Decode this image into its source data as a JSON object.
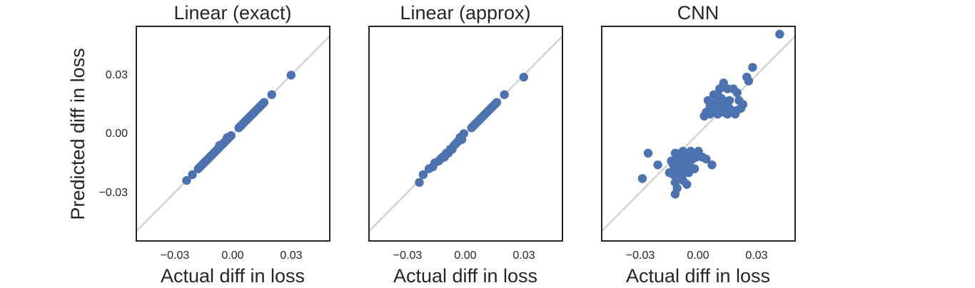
{
  "figure": {
    "ylabel": "Predicted diff in loss",
    "colors": {
      "points": "#4c72b0",
      "diagonal": "#d3d3d3",
      "frame": "#262626",
      "text": "#262626"
    }
  },
  "chart_data": [
    {
      "type": "scatter",
      "title": "Linear (exact)",
      "xlabel": "Actual diff in loss",
      "ylabel": "Predicted diff in loss",
      "xlim": [
        -0.05,
        0.05
      ],
      "ylim": [
        -0.055,
        0.055
      ],
      "xticks": [
        -0.03,
        0.0,
        0.03
      ],
      "xtick_labels": [
        "−0.03",
        "0.00",
        "0.03"
      ],
      "yticks": [
        0.03,
        0.0,
        -0.03
      ],
      "ytick_labels": [
        "0.03",
        "0.00",
        "−0.03"
      ],
      "reference_line": "y = x",
      "x": [
        -0.024,
        -0.021,
        -0.018,
        -0.017,
        -0.016,
        -0.015,
        -0.014,
        -0.013,
        -0.012,
        -0.011,
        -0.01,
        -0.009,
        -0.008,
        -0.007,
        -0.007,
        -0.006,
        -0.005,
        -0.004,
        -0.003,
        -0.003,
        -0.002,
        -0.001,
        0.003,
        0.004,
        0.005,
        0.006,
        0.007,
        0.008,
        0.009,
        0.01,
        0.011,
        0.012,
        0.013,
        0.014,
        0.015,
        0.016,
        0.02,
        0.03
      ],
      "y": [
        -0.024,
        -0.021,
        -0.018,
        -0.017,
        -0.016,
        -0.015,
        -0.014,
        -0.013,
        -0.012,
        -0.011,
        -0.01,
        -0.009,
        -0.008,
        -0.007,
        -0.006,
        -0.006,
        -0.005,
        -0.004,
        -0.003,
        -0.002,
        -0.002,
        -0.001,
        0.003,
        0.004,
        0.005,
        0.006,
        0.007,
        0.008,
        0.009,
        0.01,
        0.011,
        0.012,
        0.013,
        0.014,
        0.015,
        0.016,
        0.02,
        0.03
      ]
    },
    {
      "type": "scatter",
      "title": "Linear (approx)",
      "xlabel": "Actual diff in loss",
      "xlim": [
        -0.05,
        0.05
      ],
      "ylim": [
        -0.055,
        0.055
      ],
      "xticks": [
        -0.03,
        0.0,
        0.03
      ],
      "xtick_labels": [
        "−0.03",
        "0.00",
        "0.03"
      ],
      "reference_line": "y = x",
      "x": [
        -0.024,
        -0.022,
        -0.019,
        -0.017,
        -0.016,
        -0.014,
        -0.013,
        -0.012,
        -0.011,
        -0.01,
        -0.009,
        -0.008,
        -0.007,
        -0.006,
        -0.005,
        -0.004,
        -0.003,
        -0.002,
        -0.001,
        0.003,
        0.004,
        0.005,
        0.006,
        0.007,
        0.008,
        0.009,
        0.01,
        0.011,
        0.012,
        0.013,
        0.014,
        0.015,
        0.016,
        0.02,
        0.03
      ],
      "y": [
        -0.025,
        -0.021,
        -0.018,
        -0.017,
        -0.015,
        -0.014,
        -0.013,
        -0.012,
        -0.012,
        -0.01,
        -0.01,
        -0.008,
        -0.008,
        -0.006,
        -0.005,
        -0.004,
        -0.002,
        -0.003,
        0.0,
        0.003,
        0.004,
        0.005,
        0.006,
        0.007,
        0.008,
        0.009,
        0.01,
        0.011,
        0.012,
        0.013,
        0.014,
        0.015,
        0.016,
        0.02,
        0.029
      ]
    },
    {
      "type": "scatter",
      "title": "CNN",
      "xlabel": "Actual diff in loss",
      "xlim": [
        -0.05,
        0.05
      ],
      "ylim": [
        -0.055,
        0.055
      ],
      "xticks": [
        -0.03,
        0.0,
        0.03
      ],
      "xtick_labels": [
        "−0.03",
        "0.00",
        "0.03"
      ],
      "reference_line": "y = x",
      "x": [
        0.042,
        0.028,
        0.026,
        0.025,
        0.013,
        0.011,
        0.008,
        0.015,
        0.018,
        0.02,
        0.021,
        0.022,
        0.023,
        0.01,
        0.012,
        0.014,
        0.016,
        0.018,
        0.02,
        0.005,
        0.006,
        0.009,
        0.004,
        0.007,
        0.011,
        0.013,
        0.015,
        0.017,
        0.019,
        0.01,
        0.014,
        0.003,
        0.008,
        0.006,
        0.012,
        0.016,
        -0.026,
        -0.021,
        -0.012,
        -0.01,
        -0.009,
        -0.008,
        -0.007,
        -0.006,
        -0.005,
        -0.004,
        -0.003,
        -0.002,
        0.0,
        0.002,
        0.004,
        0.007,
        -0.011,
        -0.009,
        -0.007,
        -0.005,
        -0.003,
        -0.001,
        -0.014,
        -0.013,
        -0.012,
        -0.01,
        -0.008,
        -0.006,
        -0.004,
        -0.002,
        -0.015,
        -0.013,
        -0.011,
        -0.009,
        -0.007,
        -0.005,
        -0.012,
        -0.008,
        -0.006,
        -0.029,
        -0.012,
        -0.006,
        -0.011
      ],
      "y": [
        0.051,
        0.034,
        0.027,
        0.029,
        0.026,
        0.023,
        0.02,
        0.023,
        0.023,
        0.021,
        0.017,
        0.013,
        0.015,
        0.02,
        0.018,
        0.016,
        0.013,
        0.011,
        0.012,
        0.017,
        0.014,
        0.016,
        0.011,
        0.012,
        0.013,
        0.011,
        0.01,
        0.012,
        0.01,
        0.01,
        0.015,
        0.009,
        0.011,
        0.01,
        0.014,
        0.017,
        -0.01,
        -0.016,
        -0.01,
        -0.011,
        -0.01,
        -0.009,
        -0.011,
        -0.012,
        -0.01,
        -0.009,
        -0.01,
        -0.011,
        -0.009,
        -0.012,
        -0.013,
        -0.016,
        -0.013,
        -0.014,
        -0.014,
        -0.015,
        -0.013,
        -0.012,
        -0.014,
        -0.016,
        -0.019,
        -0.017,
        -0.016,
        -0.018,
        -0.017,
        -0.018,
        -0.02,
        -0.021,
        -0.018,
        -0.022,
        -0.02,
        -0.02,
        -0.025,
        -0.024,
        -0.026,
        -0.023,
        -0.031,
        -0.026,
        -0.028
      ]
    }
  ]
}
